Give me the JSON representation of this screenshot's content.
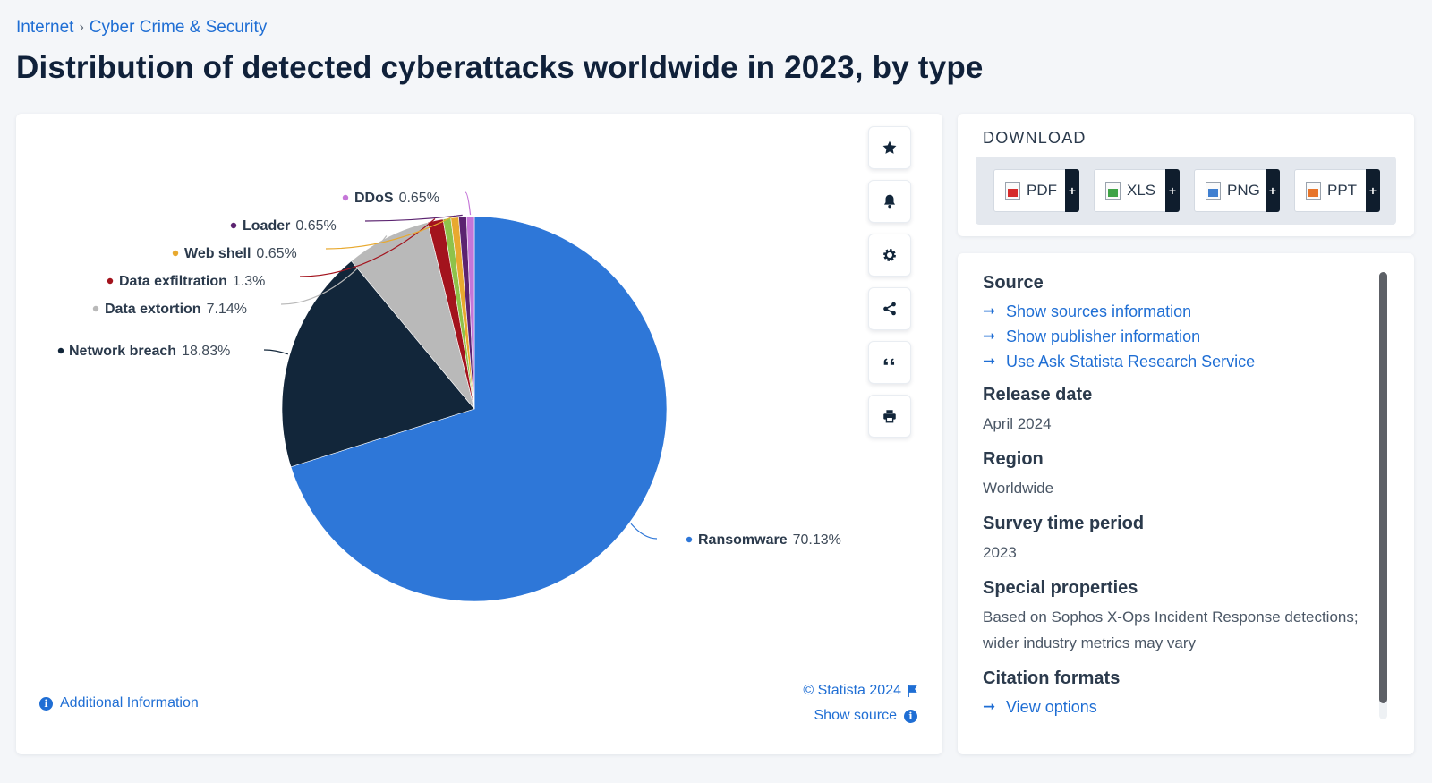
{
  "breadcrumb": {
    "items": [
      "Internet",
      "Cyber Crime & Security"
    ],
    "separator": "›"
  },
  "page": {
    "title": "Distribution of detected cyberattacks worldwide in 2023, by type"
  },
  "toolbar": {
    "icons": [
      "star-icon",
      "bell-icon",
      "gear-icon",
      "share-icon",
      "quote-icon",
      "print-icon"
    ]
  },
  "chart_footer": {
    "copyright": "© Statista 2024",
    "show_source": "Show source",
    "additional_info": "Additional Information"
  },
  "download": {
    "title": "DOWNLOAD",
    "formats": [
      {
        "label": "PDF",
        "color": "#d62b2b"
      },
      {
        "label": "XLS",
        "color": "#3ea346"
      },
      {
        "label": "PNG",
        "color": "#3f7fd0"
      },
      {
        "label": "PPT",
        "color": "#e7742a"
      }
    ],
    "plus": "+"
  },
  "meta": {
    "source_heading": "Source",
    "source_links": [
      "Show sources information",
      "Show publisher information",
      "Use Ask Statista Research Service"
    ],
    "release_heading": "Release date",
    "release_value": "April 2024",
    "region_heading": "Region",
    "region_value": "Worldwide",
    "period_heading": "Survey time period",
    "period_value": "2023",
    "special_heading": "Special properties",
    "special_value": "Based on Sophos X-Ops Incident Response detections; wider industry metrics may vary",
    "citation_heading": "Citation formats",
    "citation_link": "View options"
  },
  "chart_data": {
    "type": "pie",
    "title": "",
    "slices": [
      {
        "label": "Ransomware",
        "value": 70.13,
        "display": "70.13%",
        "color": "#2e77d8"
      },
      {
        "label": "Network breach",
        "value": 18.83,
        "display": "18.83%",
        "color": "#12263a"
      },
      {
        "label": "Data extortion",
        "value": 7.14,
        "display": "7.14%",
        "color": "#b9b9b9"
      },
      {
        "label": "Data exfiltration",
        "value": 1.3,
        "display": "1.3%",
        "color": "#a3131d"
      },
      {
        "label": "Web shell",
        "value": 0.65,
        "display": "0.65%",
        "color": "#e8a92f"
      },
      {
        "label": "Loader",
        "value": 0.65,
        "display": "0.65%",
        "color": "#5b2370"
      },
      {
        "label": "DDoS",
        "value": 0.65,
        "display": "0.65%",
        "color": "#c576d8"
      },
      {
        "label": "",
        "value": 0.65,
        "display": "",
        "color": "#8ec24a"
      }
    ]
  }
}
